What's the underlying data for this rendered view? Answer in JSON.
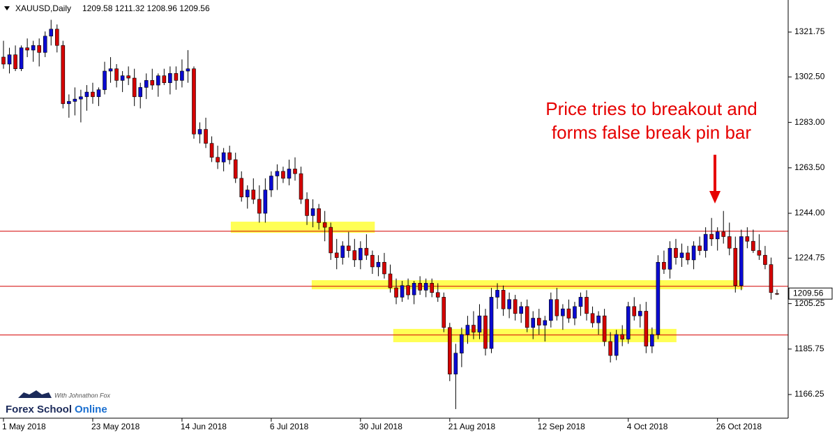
{
  "chart_data": {
    "type": "candlestick",
    "title": "XAUUSD,Daily",
    "subtitle": "1209.58 1211.32 1208.96 1209.56",
    "categories": [
      "1 May 2018",
      null,
      null,
      null,
      null,
      null,
      null,
      null,
      null,
      null,
      null,
      null,
      null,
      null,
      null,
      "23 May 2018",
      null,
      null,
      null,
      null,
      null,
      null,
      null,
      null,
      null,
      null,
      null,
      null,
      null,
      null,
      "14 Jun 2018",
      null,
      null,
      null,
      null,
      null,
      null,
      null,
      null,
      null,
      null,
      null,
      null,
      null,
      null,
      "6 Jul 2018",
      null,
      null,
      null,
      null,
      null,
      null,
      null,
      null,
      null,
      null,
      null,
      null,
      null,
      null,
      "30 Jul 2018",
      null,
      null,
      null,
      null,
      null,
      null,
      null,
      null,
      null,
      null,
      null,
      null,
      null,
      null,
      "21 Aug 2018",
      null,
      null,
      null,
      null,
      null,
      null,
      null,
      null,
      null,
      null,
      null,
      null,
      null,
      null,
      "12 Sep 2018",
      null,
      null,
      null,
      null,
      null,
      null,
      null,
      null,
      null,
      null,
      null,
      null,
      null,
      null,
      "4 Oct 2018",
      null,
      null,
      null,
      null,
      null,
      null,
      null,
      null,
      null,
      null,
      null,
      null,
      null,
      null,
      "26 Oct 2018",
      null,
      null,
      null,
      null,
      null,
      null,
      null,
      null,
      null,
      null
    ],
    "open": [
      1311,
      1308,
      1312,
      1306,
      1315,
      1314,
      1316,
      1313,
      1320,
      1323,
      1316,
      1291,
      1292,
      1293,
      1294,
      1296,
      1294,
      1297,
      1305,
      1306,
      1301,
      1303,
      1302,
      1294,
      1298,
      1301,
      1299,
      1303,
      1300,
      1304,
      1301,
      1305,
      1306,
      1278,
      1280,
      1274,
      1268,
      1266,
      1270,
      1267,
      1259,
      1251,
      1254,
      1250,
      1244,
      1254,
      1260,
      1262,
      1259,
      1263,
      1261,
      1250,
      1243,
      1246,
      1240,
      1238,
      1227,
      1225,
      1230,
      1228,
      1224,
      1229,
      1226,
      1221,
      1223,
      1218,
      1212,
      1208,
      1213,
      1209,
      1214,
      1211,
      1214,
      1210,
      1208,
      1195,
      1175,
      1184,
      1192,
      1196,
      1193,
      1200,
      1186,
      1208,
      1211,
      1203,
      1207,
      1201,
      1204,
      1195,
      1199,
      1196,
      1198,
      1207,
      1200,
      1203,
      1199,
      1204,
      1208,
      1201,
      1197,
      1200,
      1189,
      1183,
      1192,
      1190,
      1204,
      1200,
      1202,
      1187,
      1192,
      1223,
      1220,
      1229,
      1225,
      1227,
      1224,
      1230,
      1228,
      1235,
      1233,
      1236,
      1234,
      1229,
      1213,
      1234,
      1232,
      1228,
      1226,
      1222,
      1209.58
    ],
    "high": [
      1318,
      1315,
      1316,
      1316,
      1319,
      1318,
      1319,
      1322,
      1327,
      1325,
      1318,
      1295,
      1298,
      1297,
      1299,
      1300,
      1298,
      1309,
      1311,
      1308,
      1305,
      1307,
      1306,
      1300,
      1304,
      1306,
      1304,
      1306,
      1307,
      1307,
      1310,
      1314,
      1307,
      1283,
      1285,
      1277,
      1273,
      1272,
      1273,
      1270,
      1262,
      1256,
      1259,
      1256,
      1259,
      1262,
      1265,
      1264,
      1267,
      1268,
      1264,
      1253,
      1250,
      1248,
      1245,
      1240,
      1233,
      1232,
      1236,
      1233,
      1232,
      1235,
      1228,
      1226,
      1227,
      1222,
      1216,
      1215,
      1216,
      1215,
      1217,
      1216,
      1216,
      1214,
      1210,
      1197,
      1188,
      1195,
      1200,
      1202,
      1205,
      1203,
      1212,
      1214,
      1213,
      1210,
      1209,
      1206,
      1207,
      1202,
      1203,
      1200,
      1210,
      1212,
      1205,
      1207,
      1206,
      1210,
      1211,
      1204,
      1202,
      1203,
      1193,
      1194,
      1196,
      1206,
      1208,
      1205,
      1206,
      1195,
      1226,
      1228,
      1232,
      1233,
      1231,
      1230,
      1232,
      1234,
      1238,
      1242,
      1238,
      1245,
      1240,
      1234,
      1237,
      1238,
      1237,
      1235,
      1230,
      1225,
      1211.32
    ],
    "low": [
      1306,
      1304,
      1305,
      1305,
      1311,
      1309,
      1307,
      1311,
      1316,
      1313,
      1289,
      1285,
      1286,
      1283,
      1288,
      1291,
      1290,
      1295,
      1300,
      1298,
      1296,
      1299,
      1290,
      1289,
      1293,
      1297,
      1294,
      1299,
      1295,
      1297,
      1298,
      1300,
      1276,
      1274,
      1272,
      1266,
      1263,
      1262,
      1265,
      1257,
      1249,
      1246,
      1248,
      1240,
      1240,
      1251,
      1254,
      1257,
      1256,
      1258,
      1248,
      1239,
      1238,
      1237,
      1232,
      1224,
      1220,
      1222,
      1225,
      1221,
      1220,
      1224,
      1218,
      1217,
      1216,
      1210,
      1205,
      1206,
      1207,
      1205,
      1209,
      1208,
      1208,
      1206,
      1193,
      1172,
      1160,
      1178,
      1188,
      1190,
      1190,
      1183,
      1184,
      1203,
      1200,
      1199,
      1198,
      1197,
      1193,
      1190,
      1192,
      1189,
      1195,
      1198,
      1194,
      1197,
      1196,
      1200,
      1198,
      1195,
      1192,
      1187,
      1180,
      1181,
      1187,
      1188,
      1198,
      1195,
      1184,
      1184,
      1190,
      1218,
      1216,
      1222,
      1221,
      1222,
      1220,
      1226,
      1225,
      1230,
      1228,
      1231,
      1226,
      1210,
      1211,
      1229,
      1227,
      1224,
      1220,
      1207,
      1208.96
    ],
    "close": [
      1308,
      1312,
      1306,
      1315,
      1314,
      1316,
      1313,
      1320,
      1323,
      1316,
      1291,
      1292,
      1293,
      1294,
      1296,
      1294,
      1297,
      1305,
      1306,
      1301,
      1303,
      1302,
      1294,
      1298,
      1301,
      1299,
      1303,
      1300,
      1304,
      1301,
      1305,
      1306,
      1278,
      1280,
      1274,
      1268,
      1266,
      1270,
      1267,
      1259,
      1251,
      1254,
      1250,
      1244,
      1254,
      1260,
      1262,
      1259,
      1263,
      1261,
      1250,
      1243,
      1246,
      1240,
      1238,
      1227,
      1225,
      1230,
      1228,
      1224,
      1229,
      1226,
      1221,
      1223,
      1218,
      1212,
      1208,
      1213,
      1209,
      1214,
      1211,
      1214,
      1210,
      1208,
      1195,
      1175,
      1184,
      1192,
      1196,
      1193,
      1200,
      1186,
      1208,
      1211,
      1203,
      1207,
      1201,
      1204,
      1195,
      1199,
      1196,
      1198,
      1207,
      1200,
      1203,
      1199,
      1204,
      1208,
      1201,
      1197,
      1200,
      1189,
      1183,
      1192,
      1190,
      1204,
      1200,
      1202,
      1187,
      1192,
      1223,
      1220,
      1229,
      1225,
      1227,
      1224,
      1230,
      1228,
      1235,
      1233,
      1236,
      1234,
      1229,
      1213,
      1234,
      1232,
      1228,
      1226,
      1222,
      1210,
      1209.56
    ],
    "up_color": "#0a0ad2",
    "down_color": "#d40000",
    "ylim": [
      1156.1,
      1335.5
    ],
    "yticks": [
      1321.75,
      {
        "value": 1302.5,
        "label": "1302.50"
      },
      {
        "value": 1283,
        "label": "1283.00"
      },
      {
        "value": 1263.5,
        "label": "1263.50"
      },
      {
        "value": 1244,
        "label": "1244.00"
      },
      1224.75,
      1205.25,
      1185.75,
      1166.25
    ],
    "hlines": [
      1236.3,
      1212.7,
      1191.8
    ],
    "hline_color": "#d40000",
    "zones": [
      {
        "x": [
          38.2,
          62.4
        ],
        "y": [
          1235.6,
          1240.4
        ]
      },
      {
        "x": [
          51.8,
          124.3
        ],
        "y": [
          1211.4,
          1215.3
        ]
      },
      {
        "x": [
          65.5,
          113.1
        ],
        "y": [
          1188.7,
          1194.4
        ]
      }
    ],
    "zone_color": "#ffff55",
    "annotation": [
      "Price tries to breakout and",
      "forms false break pin bar"
    ],
    "annotation_color": "#e60000"
  },
  "logo": {
    "tagline": "With Johnathon Fox",
    "name": "Forex School",
    "suffix": "Online"
  }
}
